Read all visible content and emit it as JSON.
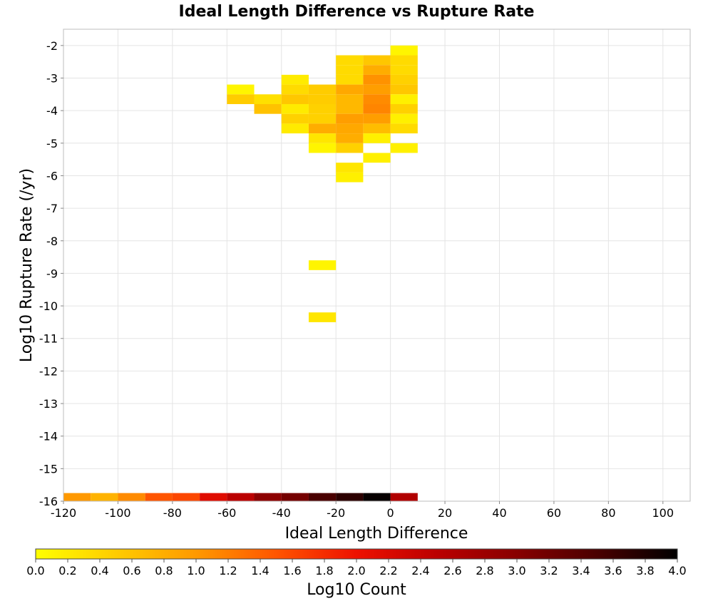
{
  "chart_data": {
    "type": "heatmap",
    "title": "Ideal Length Difference vs Rupture Rate",
    "xlabel": "Ideal Length Difference",
    "ylabel": "Log10 Rupture Rate (/yr)",
    "xlim": [
      -120,
      110
    ],
    "ylim": [
      -16,
      -1.5
    ],
    "x_ticks": [
      -120,
      -100,
      -80,
      -60,
      -40,
      -20,
      0,
      20,
      40,
      60,
      80,
      100
    ],
    "y_ticks": [
      -2,
      -3,
      -4,
      -5,
      -6,
      -7,
      -8,
      -9,
      -10,
      -11,
      -12,
      -13,
      -14,
      -15,
      -16
    ],
    "x_bin_width": 10,
    "y_bin_height": 0.3,
    "grid": true,
    "colorbar": {
      "label": "Log10 Count",
      "range": [
        0.0,
        4.0
      ],
      "ticks": [
        "0.0",
        "0.2",
        "0.4",
        "0.6",
        "0.8",
        "1.0",
        "1.2",
        "1.4",
        "1.6",
        "1.8",
        "2.0",
        "2.2",
        "2.4",
        "2.6",
        "2.8",
        "3.0",
        "3.2",
        "3.4",
        "3.6",
        "3.8",
        "4.0"
      ],
      "stops": [
        "#ffff00",
        "#ffcc00",
        "#ff9900",
        "#ff5500",
        "#ee1100",
        "#bb0000",
        "#880000",
        "#4a0000",
        "#000000"
      ]
    },
    "cells": [
      {
        "x": 5,
        "y": -2.15,
        "v": 0.1
      },
      {
        "x": 5,
        "y": -2.45,
        "v": 0.35
      },
      {
        "x": -15,
        "y": -2.45,
        "v": 0.35
      },
      {
        "x": -5,
        "y": -2.45,
        "v": 0.55
      },
      {
        "x": -15,
        "y": -2.75,
        "v": 0.35
      },
      {
        "x": -5,
        "y": -2.75,
        "v": 0.8
      },
      {
        "x": 5,
        "y": -2.75,
        "v": 0.35
      },
      {
        "x": -35,
        "y": -3.05,
        "v": 0.2
      },
      {
        "x": -15,
        "y": -3.05,
        "v": 0.35
      },
      {
        "x": -5,
        "y": -3.05,
        "v": 1.05
      },
      {
        "x": 5,
        "y": -3.05,
        "v": 0.45
      },
      {
        "x": -55,
        "y": -3.35,
        "v": 0.1
      },
      {
        "x": -35,
        "y": -3.35,
        "v": 0.35
      },
      {
        "x": -25,
        "y": -3.35,
        "v": 0.5
      },
      {
        "x": -15,
        "y": -3.35,
        "v": 0.85
      },
      {
        "x": -5,
        "y": -3.35,
        "v": 0.95
      },
      {
        "x": 5,
        "y": -3.35,
        "v": 0.55
      },
      {
        "x": -55,
        "y": -3.65,
        "v": 0.5
      },
      {
        "x": -45,
        "y": -3.65,
        "v": 0.3
      },
      {
        "x": -35,
        "y": -3.65,
        "v": 0.55
      },
      {
        "x": -25,
        "y": -3.65,
        "v": 0.5
      },
      {
        "x": -15,
        "y": -3.65,
        "v": 0.7
      },
      {
        "x": -5,
        "y": -3.65,
        "v": 1.1
      },
      {
        "x": 5,
        "y": -3.65,
        "v": 0.15
      },
      {
        "x": -45,
        "y": -3.95,
        "v": 0.6
      },
      {
        "x": -35,
        "y": -3.95,
        "v": 0.2
      },
      {
        "x": -25,
        "y": -3.95,
        "v": 0.45
      },
      {
        "x": -15,
        "y": -3.95,
        "v": 0.7
      },
      {
        "x": -5,
        "y": -3.95,
        "v": 1.15
      },
      {
        "x": 5,
        "y": -3.95,
        "v": 0.45
      },
      {
        "x": -35,
        "y": -4.25,
        "v": 0.45
      },
      {
        "x": -25,
        "y": -4.25,
        "v": 0.45
      },
      {
        "x": -15,
        "y": -4.25,
        "v": 0.95
      },
      {
        "x": -5,
        "y": -4.25,
        "v": 0.95
      },
      {
        "x": 5,
        "y": -4.25,
        "v": 0.15
      },
      {
        "x": -35,
        "y": -4.55,
        "v": 0.2
      },
      {
        "x": -25,
        "y": -4.55,
        "v": 0.8
      },
      {
        "x": -15,
        "y": -4.55,
        "v": 0.85
      },
      {
        "x": -5,
        "y": -4.55,
        "v": 0.65
      },
      {
        "x": 5,
        "y": -4.55,
        "v": 0.35
      },
      {
        "x": -25,
        "y": -4.85,
        "v": 0.25
      },
      {
        "x": -15,
        "y": -4.85,
        "v": 0.8
      },
      {
        "x": -5,
        "y": -4.85,
        "v": 0.15
      },
      {
        "x": -25,
        "y": -5.15,
        "v": 0.1
      },
      {
        "x": -15,
        "y": -5.15,
        "v": 0.45
      },
      {
        "x": 5,
        "y": -5.15,
        "v": 0.15
      },
      {
        "x": -5,
        "y": -5.45,
        "v": 0.15
      },
      {
        "x": -15,
        "y": -5.75,
        "v": 0.25
      },
      {
        "x": -15,
        "y": -6.05,
        "v": 0.15
      },
      {
        "x": -25,
        "y": -8.75,
        "v": 0.1
      },
      {
        "x": -25,
        "y": -10.35,
        "v": 0.25
      },
      {
        "x": -115,
        "y": -15.9,
        "v": 1.0
      },
      {
        "x": -105,
        "y": -15.9,
        "v": 0.75
      },
      {
        "x": -95,
        "y": -15.9,
        "v": 1.1
      },
      {
        "x": -85,
        "y": -15.9,
        "v": 1.5
      },
      {
        "x": -75,
        "y": -15.9,
        "v": 1.6
      },
      {
        "x": -65,
        "y": -15.9,
        "v": 2.15
      },
      {
        "x": -55,
        "y": -15.9,
        "v": 2.5
      },
      {
        "x": -45,
        "y": -15.9,
        "v": 2.95
      },
      {
        "x": -35,
        "y": -15.9,
        "v": 3.15
      },
      {
        "x": -25,
        "y": -15.9,
        "v": 3.5
      },
      {
        "x": -15,
        "y": -15.9,
        "v": 3.7
      },
      {
        "x": -5,
        "y": -15.9,
        "v": 3.95
      },
      {
        "x": 5,
        "y": -15.9,
        "v": 2.6
      }
    ]
  }
}
